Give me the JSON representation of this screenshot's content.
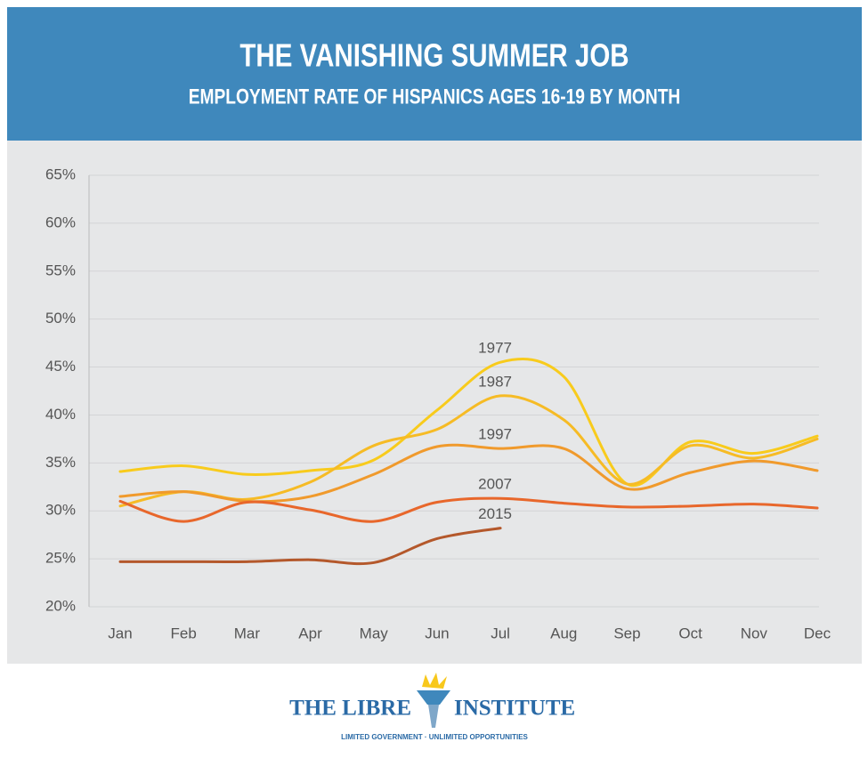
{
  "chart_data": {
    "type": "line",
    "title": "THE VANISHING SUMMER JOB",
    "subtitle": "EMPLOYMENT RATE OF HISPANICS AGES 16-19 BY MONTH",
    "categories": [
      "Jan",
      "Feb",
      "Mar",
      "Apr",
      "May",
      "Jun",
      "Jul",
      "Aug",
      "Sep",
      "Oct",
      "Nov",
      "Dec"
    ],
    "series": [
      {
        "name": "1977",
        "color": "#f8cb1c",
        "values": [
          34.1,
          34.7,
          33.8,
          34.2,
          35.3,
          40.5,
          45.5,
          44.0,
          32.8,
          37.2,
          36.0,
          37.8
        ]
      },
      {
        "name": "1987",
        "color": "#f6bb25",
        "values": [
          30.5,
          32.0,
          31.2,
          33.0,
          36.8,
          38.5,
          42.0,
          39.5,
          32.8,
          36.8,
          35.5,
          37.5
        ]
      },
      {
        "name": "1997",
        "color": "#f09a2c",
        "values": [
          31.5,
          32.0,
          31.0,
          31.5,
          33.8,
          36.7,
          36.5,
          36.5,
          32.3,
          34.0,
          35.2,
          34.2
        ]
      },
      {
        "name": "2007",
        "color": "#e8672b",
        "values": [
          31.0,
          28.9,
          30.9,
          30.1,
          28.9,
          30.9,
          31.3,
          30.8,
          30.4,
          30.5,
          30.7,
          30.3
        ]
      },
      {
        "name": "2015",
        "color": "#b4582b",
        "values": [
          24.7,
          24.7,
          24.7,
          24.9,
          24.6,
          27.1,
          28.2,
          null,
          null,
          null,
          null,
          null
        ]
      }
    ],
    "ylim": [
      20,
      65
    ],
    "yticks": [
      {
        "value": 20,
        "label": "20%"
      },
      {
        "value": 25,
        "label": "25%"
      },
      {
        "value": 30,
        "label": "30%"
      },
      {
        "value": 35,
        "label": "35%"
      },
      {
        "value": 40,
        "label": "40%"
      },
      {
        "value": 45,
        "label": "45%"
      },
      {
        "value": 50,
        "label": "50%"
      },
      {
        "value": 55,
        "label": "55%"
      },
      {
        "value": 60,
        "label": "60%"
      },
      {
        "value": 65,
        "label": "65%"
      }
    ],
    "grid": true
  },
  "logo": {
    "name_left": "THE LIBRE",
    "name_right": "INSTITUTE",
    "tagline": "LIMITED GOVERNMENT · UNLIMITED OPPORTUNITIES"
  }
}
